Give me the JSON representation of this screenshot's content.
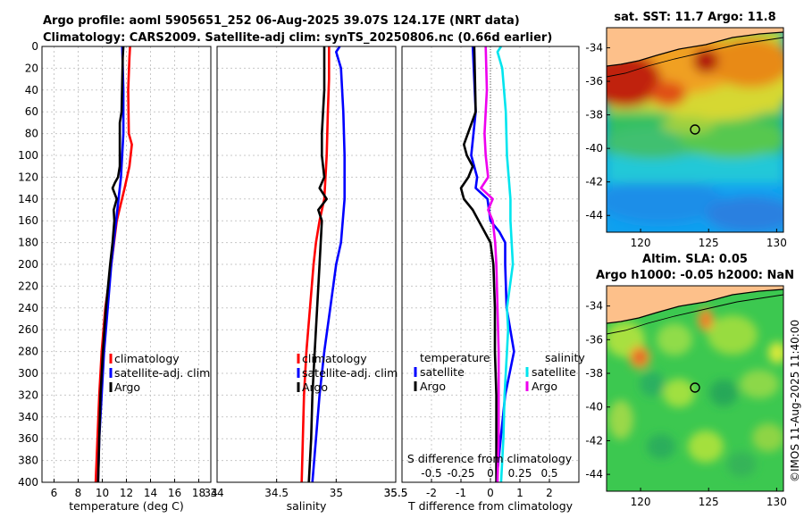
{
  "header": {
    "title_line1": "Argo profile: aoml 5905651_252 06-Aug-2025 39.07S 124.17E (NRT data)",
    "title_line2": "Climatology: CARS2009. Satellite-adj clim: synTS_20250806.nc (0.66d earlier)"
  },
  "colors": {
    "climatology": "#ff0000",
    "satellite": "#0000ff",
    "argo": "#000000",
    "sal_satellite": "#00e5ee",
    "sal_argo": "#ee00ee"
  },
  "chart_data": [
    {
      "id": "temperature",
      "type": "line",
      "xlabel": "temperature (deg C)",
      "ylabel": "",
      "xlim": [
        5,
        19
      ],
      "ylim": [
        400,
        0
      ],
      "xticks": [
        "6",
        "8",
        "10",
        "12",
        "14",
        "16",
        "18"
      ],
      "yticks": [
        "0",
        "20",
        "40",
        "60",
        "80",
        "100",
        "120",
        "140",
        "160",
        "180",
        "200",
        "220",
        "240",
        "260",
        "280",
        "300",
        "320",
        "340",
        "360",
        "380",
        "400"
      ],
      "legend": [
        "climatology",
        "satellite-adj. clim",
        "Argo"
      ],
      "series": [
        {
          "name": "climatology",
          "depth": [
            0,
            10,
            40,
            80,
            90,
            110,
            130,
            160,
            200,
            240,
            280,
            320,
            360,
            400
          ],
          "values": [
            12.3,
            12.25,
            12.15,
            12.2,
            12.45,
            12.25,
            11.85,
            11.2,
            10.75,
            10.25,
            9.95,
            9.75,
            9.6,
            9.45
          ]
        },
        {
          "name": "satellite-adj. clim",
          "depth": [
            0,
            40,
            80,
            120,
            140,
            160,
            180,
            200,
            240,
            280,
            320,
            360,
            400
          ],
          "values": [
            11.65,
            11.75,
            11.75,
            11.55,
            11.35,
            11.15,
            10.95,
            10.75,
            10.45,
            10.15,
            9.95,
            9.75,
            9.65
          ]
        },
        {
          "name": "Argo",
          "depth": [
            0,
            10,
            60,
            70,
            110,
            120,
            125,
            130,
            140,
            150,
            160,
            180,
            200,
            240,
            280,
            320,
            360,
            400
          ],
          "values": [
            11.75,
            11.7,
            11.6,
            11.45,
            11.45,
            11.3,
            11.05,
            10.85,
            11.2,
            10.95,
            11.0,
            10.85,
            10.65,
            10.3,
            10.05,
            9.85,
            9.75,
            9.65
          ]
        }
      ]
    },
    {
      "id": "salinity",
      "type": "line",
      "xlabel": "salinity",
      "xlim": [
        34,
        35.5
      ],
      "ylim": [
        400,
        0
      ],
      "xticks": [
        "34",
        "34.5",
        "35",
        "35.5"
      ],
      "legend": [
        "climatology",
        "satellite-adj. clim",
        "Argo"
      ],
      "series": [
        {
          "name": "climatology",
          "depth": [
            0,
            30,
            60,
            100,
            140,
            160,
            180,
            200,
            240,
            280,
            320,
            360,
            400
          ],
          "values": [
            34.94,
            34.94,
            34.93,
            34.92,
            34.9,
            34.86,
            34.83,
            34.81,
            34.78,
            34.75,
            34.73,
            34.72,
            34.71
          ]
        },
        {
          "name": "satellite-adj. clim",
          "depth": [
            0,
            5,
            20,
            60,
            100,
            140,
            180,
            200,
            240,
            280,
            320,
            360,
            400
          ],
          "values": [
            35.03,
            35.0,
            35.04,
            35.06,
            35.07,
            35.07,
            35.04,
            35.0,
            34.95,
            34.9,
            34.86,
            34.83,
            34.8
          ]
        },
        {
          "name": "Argo",
          "depth": [
            0,
            40,
            80,
            100,
            120,
            130,
            140,
            150,
            160,
            180,
            200,
            240,
            280,
            320,
            360,
            400
          ],
          "values": [
            34.9,
            34.9,
            34.88,
            34.88,
            34.9,
            34.86,
            34.92,
            34.85,
            34.88,
            34.87,
            34.86,
            34.84,
            34.82,
            34.8,
            34.79,
            34.77
          ]
        }
      ]
    },
    {
      "id": "difference",
      "type": "line",
      "xlabel": "T difference from climatology",
      "xlim": [
        -3,
        3
      ],
      "ylim": [
        400,
        0
      ],
      "xticks": [
        "-2",
        "-1",
        "0",
        "1",
        "2"
      ],
      "top_label": "S difference from climatology",
      "top_ticks": [
        "-0.5",
        "-0.25",
        "0",
        "0.25",
        "0.5"
      ],
      "legend_temperature_title": "temperature",
      "legend_salinity_title": "salinity",
      "legend_satellite": "satellite",
      "legend_argo": "Argo",
      "series": [
        {
          "name": "T satellite",
          "depth": [
            0,
            60,
            100,
            120,
            130,
            140,
            160,
            170,
            180,
            200,
            240,
            280,
            320,
            360,
            400
          ],
          "values": [
            -0.6,
            -0.5,
            -0.65,
            -0.45,
            -0.5,
            -0.1,
            0.0,
            0.3,
            0.5,
            0.5,
            0.55,
            0.8,
            0.5,
            0.35,
            0.2
          ]
        },
        {
          "name": "T argo",
          "depth": [
            0,
            60,
            90,
            100,
            110,
            120,
            130,
            140,
            150,
            160,
            180,
            200,
            240,
            280,
            320,
            360,
            400
          ],
          "values": [
            -0.55,
            -0.5,
            -0.9,
            -0.8,
            -0.6,
            -0.75,
            -1.0,
            -0.9,
            -0.6,
            -0.4,
            0.0,
            0.1,
            0.15,
            0.15,
            0.2,
            0.2,
            0.2
          ]
        },
        {
          "name": "S satellite",
          "depth": [
            0,
            5,
            20,
            60,
            100,
            140,
            160,
            200,
            240,
            260,
            280,
            320,
            360,
            400
          ],
          "values": [
            0.09,
            0.06,
            0.1,
            0.13,
            0.14,
            0.17,
            0.17,
            0.19,
            0.14,
            0.15,
            0.14,
            0.12,
            0.11,
            0.09
          ]
        },
        {
          "name": "S argo",
          "depth": [
            0,
            40,
            80,
            100,
            120,
            130,
            140,
            150,
            160,
            180,
            200,
            240,
            280,
            320,
            360,
            400
          ],
          "values": [
            -0.04,
            -0.03,
            -0.05,
            -0.04,
            -0.02,
            -0.08,
            0.02,
            -0.02,
            0.02,
            0.04,
            0.05,
            0.06,
            0.07,
            0.07,
            0.07,
            0.06
          ]
        }
      ]
    },
    {
      "id": "sst_map",
      "type": "heatmap",
      "title": "sat. SST: 11.7 Argo: 11.8",
      "xticks": [
        "120",
        "125",
        "130"
      ],
      "yticks": [
        "-34",
        "-36",
        "-38",
        "-40",
        "-42",
        "-44"
      ],
      "xlim": [
        117.5,
        130.5
      ],
      "ylim": [
        -45,
        -32.8
      ],
      "marker": {
        "lon": 124.17,
        "lat": -39.07
      }
    },
    {
      "id": "sla_map",
      "type": "heatmap",
      "title_line1": "Altim. SLA: 0.05",
      "title_line2": "Argo h1000: -0.05 h2000: NaN",
      "xticks": [
        "120",
        "125",
        "130"
      ],
      "yticks": [
        "-34",
        "-36",
        "-38",
        "-40",
        "-42",
        "-44"
      ],
      "xlim": [
        117.5,
        130.5
      ],
      "ylim": [
        -45,
        -32.8
      ],
      "marker": {
        "lon": 124.17,
        "lat": -39.07
      }
    }
  ],
  "watermark": "©IMOS 11-Aug-2025 11:40:00"
}
